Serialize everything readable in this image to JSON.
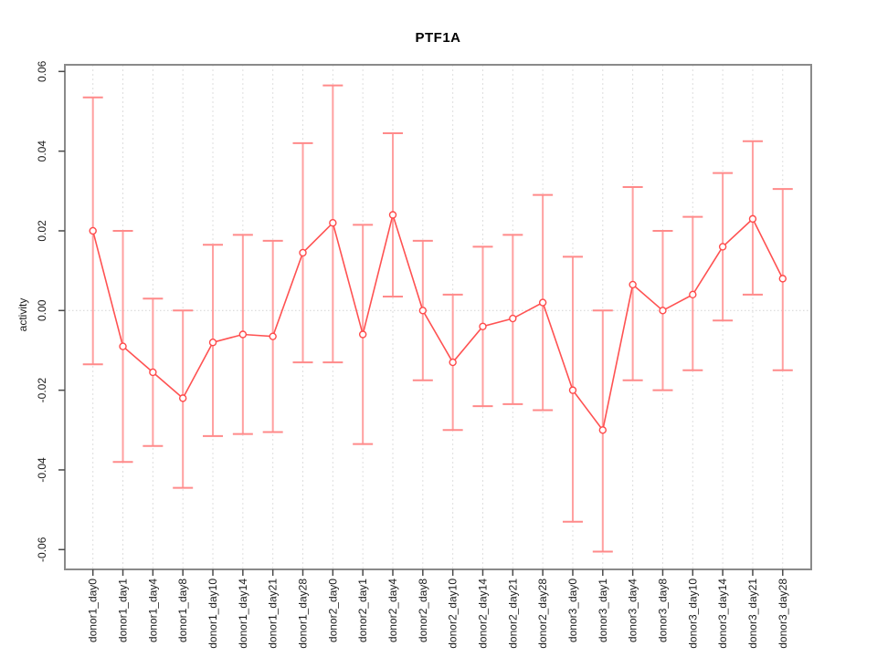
{
  "chart_data": {
    "type": "line",
    "title": "PTF1A",
    "xlabel": "",
    "ylabel": "activity",
    "ylim": [
      -0.06,
      0.06
    ],
    "yticks": [
      -0.06,
      -0.04,
      -0.02,
      0.0,
      0.02,
      0.04,
      0.06
    ],
    "ytick_labels": [
      "-0.06",
      "-0.04",
      "-0.02",
      "0.00",
      "0.02",
      "0.04",
      "0.06"
    ],
    "grid": "vertical dashed gridline at each category, dotted horizontal line at y=0",
    "legend_position": "none",
    "marker": "open-circle",
    "categories": [
      "donor1_day0",
      "donor1_day1",
      "donor1_day4",
      "donor1_day8",
      "donor1_day10",
      "donor1_day14",
      "donor1_day21",
      "donor1_day28",
      "donor2_day0",
      "donor2_day1",
      "donor2_day4",
      "donor2_day8",
      "donor2_day10",
      "donor2_day14",
      "donor2_day21",
      "donor2_day28",
      "donor3_day0",
      "donor3_day1",
      "donor3_day4",
      "donor3_day8",
      "donor3_day10",
      "donor3_day14",
      "donor3_day21",
      "donor3_day28"
    ],
    "series": [
      {
        "name": "activity",
        "values": [
          0.02,
          -0.009,
          -0.0155,
          -0.022,
          -0.008,
          -0.006,
          -0.0065,
          0.0145,
          0.022,
          -0.006,
          0.024,
          0.0,
          -0.013,
          -0.004,
          -0.002,
          0.002,
          -0.02,
          -0.03,
          0.0065,
          0.0,
          0.004,
          0.016,
          0.023,
          0.008
        ],
        "error_high": [
          0.0535,
          0.02,
          0.003,
          0.0,
          0.0165,
          0.019,
          0.0175,
          0.042,
          0.0565,
          0.0215,
          0.0445,
          0.0175,
          0.004,
          0.016,
          0.019,
          0.029,
          0.0135,
          0.0,
          0.031,
          0.02,
          0.0235,
          0.0345,
          0.0425,
          0.0305
        ],
        "error_low": [
          -0.0135,
          -0.038,
          -0.034,
          -0.0445,
          -0.0315,
          -0.031,
          -0.0305,
          -0.013,
          -0.013,
          -0.0335,
          0.0035,
          -0.0175,
          -0.03,
          -0.024,
          -0.0235,
          -0.025,
          -0.053,
          -0.0605,
          -0.0175,
          -0.02,
          -0.015,
          -0.0025,
          0.004,
          -0.015
        ]
      }
    ]
  },
  "style": {
    "series_color": "#FF5252",
    "marker_color": "#FF4A4A",
    "error_line_color": "#FFA0A0",
    "error_cap_color": "#FF8A8A",
    "grid_color": "#DEDEDE",
    "zero_line_color": "#D9D9D9",
    "frame_color": "#8A8A8A",
    "tick_color": "#4A4A4A",
    "text_color": "#1A1A1A",
    "background_color": "#FFFFFF"
  }
}
